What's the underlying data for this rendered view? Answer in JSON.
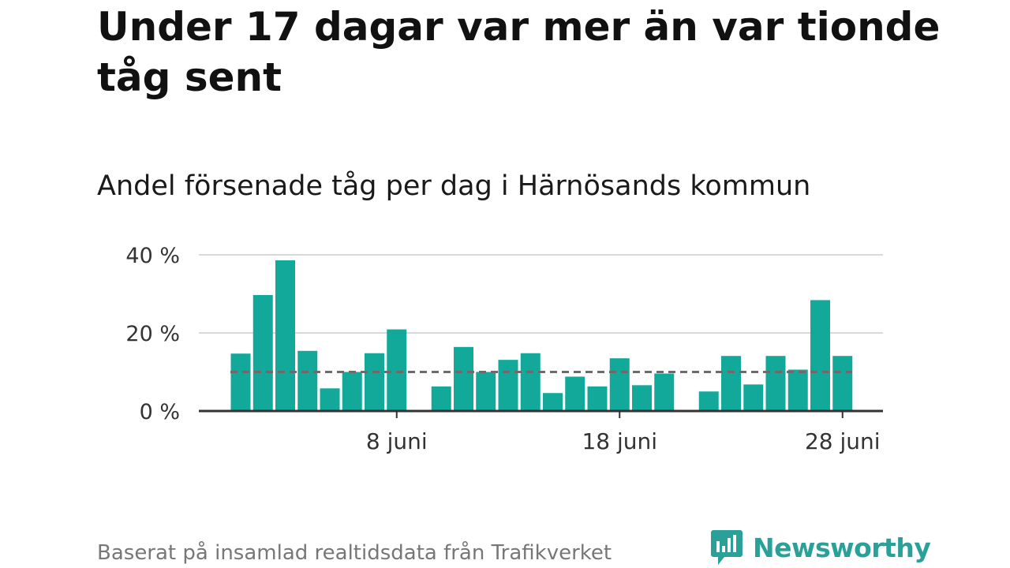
{
  "header": {
    "title": "Under 17 dagar var mer än var tionde tåg sent",
    "subtitle": "Andel försenade tåg per dag i Härnösands kommun"
  },
  "footer": {
    "source": "Baserat på insamlad realtidsdata från Trafikverket",
    "brand": "Newsworthy"
  },
  "colors": {
    "bar": "#12a89a",
    "threshold": "#6b6b6b",
    "grid": "#d9d9d9",
    "axis": "#333333",
    "brand": "#2aa198"
  },
  "chart_data": {
    "type": "bar",
    "title": "Andel försenade tåg per dag i Härnösands kommun",
    "xlabel": "",
    "ylabel": "",
    "ylim": [
      0,
      40
    ],
    "y_ticks": [
      0,
      20,
      40
    ],
    "y_tick_labels": [
      "0 %",
      "20 %",
      "40 %"
    ],
    "x_tick_labels": [
      {
        "day": 8,
        "label": "8 juni"
      },
      {
        "day": 18,
        "label": "18 juni"
      },
      {
        "day": 28,
        "label": "28 juni"
      }
    ],
    "threshold": 10,
    "threshold_style": "dashed",
    "grid": true,
    "categories": [
      "1 juni",
      "2 juni",
      "3 juni",
      "4 juni",
      "5 juni",
      "6 juni",
      "7 juni",
      "8 juni",
      "9 juni",
      "10 juni",
      "11 juni",
      "12 juni",
      "13 juni",
      "14 juni",
      "15 juni",
      "16 juni",
      "17 juni",
      "18 juni",
      "19 juni",
      "20 juni",
      "21 juni",
      "22 juni",
      "23 juni",
      "24 juni",
      "25 juni",
      "26 juni",
      "27 juni",
      "28 juni"
    ],
    "values": [
      14.7,
      29.7,
      38.6,
      15.4,
      5.8,
      10.0,
      14.8,
      20.9,
      null,
      6.3,
      16.4,
      10.0,
      13.1,
      14.8,
      4.6,
      8.8,
      6.3,
      13.5,
      6.6,
      9.6,
      null,
      5.0,
      14.1,
      6.8,
      14.1,
      10.6,
      28.4,
      14.1
    ]
  }
}
